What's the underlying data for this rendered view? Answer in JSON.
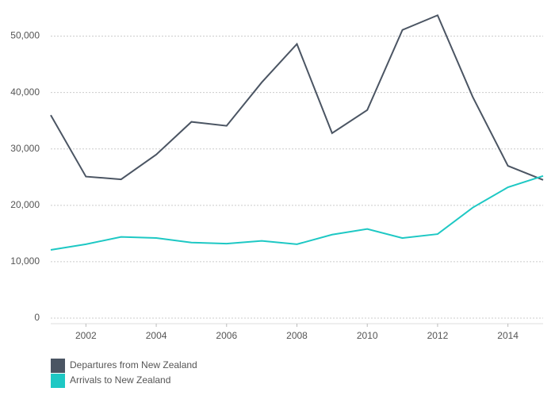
{
  "chart_data": {
    "type": "line",
    "x": [
      2001,
      2002,
      2003,
      2004,
      2005,
      2006,
      2007,
      2008,
      2009,
      2010,
      2011,
      2012,
      2013,
      2014,
      2015
    ],
    "series": [
      {
        "name": "Departures from New Zealand",
        "color": "#4b5563",
        "values": [
          36000,
          25100,
          24600,
          29000,
          34800,
          34100,
          41800,
          48600,
          32800,
          36900,
          51100,
          53700,
          39200,
          27000,
          24500
        ]
      },
      {
        "name": "Arrivals to New Zealand",
        "color": "#1ec8c4",
        "values": [
          12100,
          13100,
          14400,
          14200,
          13400,
          13200,
          13700,
          13100,
          14800,
          15800,
          14200,
          14900,
          19600,
          23200,
          25200
        ]
      }
    ],
    "xlim": [
      2001,
      2015
    ],
    "xticks": [
      2002,
      2004,
      2006,
      2008,
      2010,
      2012,
      2014
    ],
    "ylim": [
      0,
      55000
    ],
    "yticks": [
      0,
      {
        "value": 10000,
        "label": "10,000"
      },
      {
        "value": 20000,
        "label": "20,000"
      },
      {
        "value": 30000,
        "label": "30,000"
      },
      {
        "value": 40000,
        "label": "40,000"
      },
      {
        "value": 50000,
        "label": "50,000"
      }
    ],
    "grid": true
  }
}
